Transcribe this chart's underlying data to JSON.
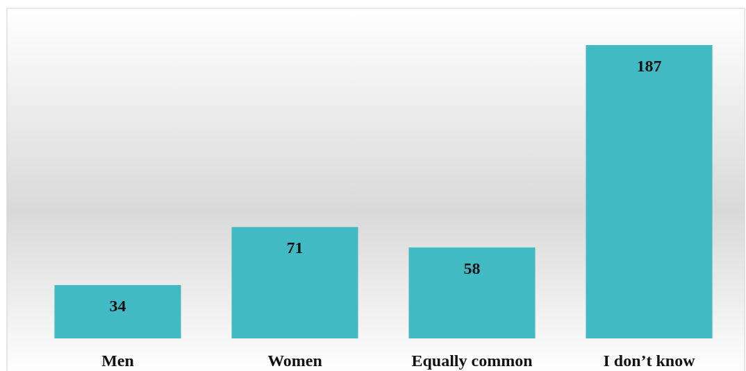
{
  "chart_data": {
    "type": "bar",
    "categories": [
      "Men",
      "Women",
      "Equally common",
      "I don’t know"
    ],
    "values": [
      34,
      71,
      58,
      187
    ],
    "color": "#42bac4",
    "data_labels": true
  }
}
